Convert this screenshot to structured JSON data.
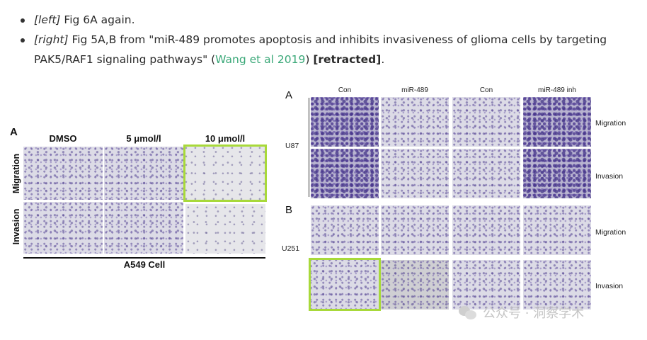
{
  "bullets": [
    {
      "italic": "[left]",
      "text": " Fig 6A again."
    },
    {
      "italic": "[right]",
      "text_before": " Fig 5A,B from \"miR-489 promotes apoptosis and inhibits invasiveness of glioma cells by targeting PAK5/RAF1 signaling pathways\" (",
      "link": "Wang et al 2019",
      "text_mid": ") ",
      "bold": "[retracted]",
      "text_after": "."
    }
  ],
  "left_figure": {
    "panel_label": "A",
    "columns": [
      "DMSO",
      "5 μmol/l",
      "10 μmol/l"
    ],
    "rows": [
      "Migration",
      "Invasion"
    ],
    "caption": "A549 Cell"
  },
  "right_figure": {
    "panel_a_label": "A",
    "panel_b_label": "B",
    "columns": [
      "Con",
      "miR-489",
      "Con",
      "miR-489 inh"
    ],
    "panel_a_group": "U87",
    "panel_b_group": "U251",
    "row_labels": [
      "Migration",
      "Invasion",
      "Migration",
      "Invasion"
    ]
  },
  "watermark": {
    "text": "公众号 · 洞察学术",
    "icon": "wechat-icon"
  },
  "colors": {
    "highlight": "#a8d93a",
    "link": "#3aa878"
  }
}
